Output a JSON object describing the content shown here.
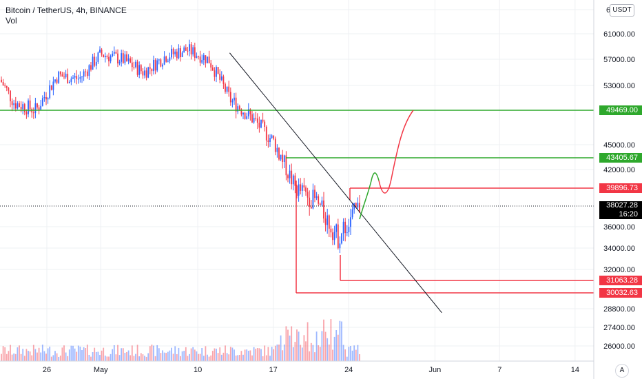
{
  "header": {
    "title": "Bitcoin / TetherUS, 4h, BINANCE",
    "volume_label": "Vol"
  },
  "currency_button": "USDT",
  "auto_button": "A",
  "colors": {
    "up": "#2962ff",
    "down": "#f23645",
    "green_level": "#2ea82c",
    "red_level": "#f23645",
    "grid": "#eef0f3",
    "axis_text": "#131722"
  },
  "chart_data": {
    "type": "candlestick",
    "title": "Bitcoin / TetherUS, 4h, BINANCE",
    "y_tick_labels": [
      "61000.00",
      "57000.00",
      "53000.00",
      "45000.00",
      "42000.00",
      "36000.00",
      "34000.00",
      "32000.00",
      "28800.00",
      "27400.00",
      "26000.00"
    ],
    "y_ticks": [
      61000,
      57000,
      53000,
      45000,
      42000,
      36000,
      34000,
      32000,
      28800,
      27400,
      26000
    ],
    "x_tick_labels": [
      "26",
      "May",
      "10",
      "17",
      "24",
      "Jun",
      "7",
      "14"
    ],
    "horizontal_levels": [
      {
        "label": "49469.00",
        "value": 49469,
        "color": "green"
      },
      {
        "label": "43405.67",
        "value": 43405.67,
        "color": "green"
      },
      {
        "label": "39896.73",
        "value": 39896.73,
        "color": "red"
      },
      {
        "label": "31063.28",
        "value": 31063.28,
        "color": "red"
      },
      {
        "label": "30032.63",
        "value": 30032.63,
        "color": "red"
      }
    ],
    "last_price": {
      "label": "38027.28",
      "value": 38027.28,
      "countdown": "16:20"
    },
    "trendline": {
      "from_date": "May 12",
      "from_price": 58000,
      "to_date": "Jun 1",
      "to_price": 28500
    },
    "price_series_approx": [
      {
        "d": "Apr 21",
        "close": 55500
      },
      {
        "d": "Apr 23",
        "close": 50500
      },
      {
        "d": "Apr 25",
        "close": 49500
      },
      {
        "d": "Apr 27",
        "close": 54500
      },
      {
        "d": "Apr 29",
        "close": 54000
      },
      {
        "d": "May 1",
        "close": 57800
      },
      {
        "d": "May 3",
        "close": 57000
      },
      {
        "d": "May 5",
        "close": 55000
      },
      {
        "d": "May 7",
        "close": 57500
      },
      {
        "d": "May 9",
        "close": 58500
      },
      {
        "d": "May 11",
        "close": 57000
      },
      {
        "d": "May 13",
        "close": 51000
      },
      {
        "d": "May 15",
        "close": 48500
      },
      {
        "d": "May 17",
        "close": 45500
      },
      {
        "d": "May 19",
        "close": 40000
      },
      {
        "d": "May 21",
        "close": 38500
      },
      {
        "d": "May 23",
        "close": 35000
      },
      {
        "d": "May 25",
        "close": 38000
      }
    ]
  }
}
